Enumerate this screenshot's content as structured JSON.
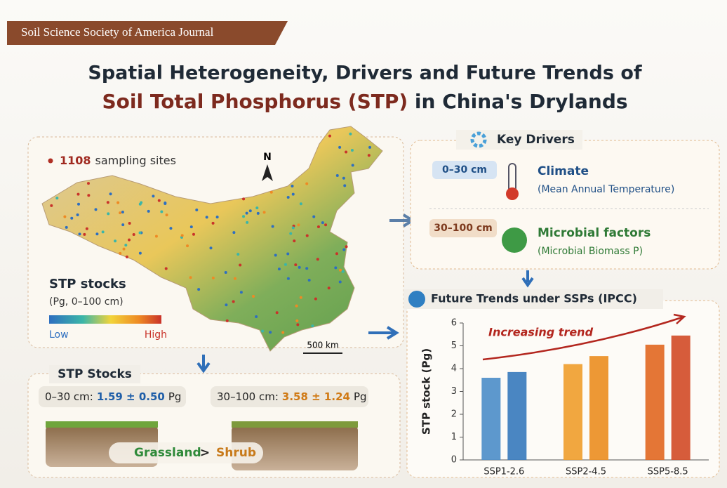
{
  "header": {
    "journal": "Soil Science Society of America Journal",
    "title_line1": "Spatial Heterogeneity, Drivers and Future Trends of",
    "title_line2_highlight": "Soil Total Phosphorus (STP)",
    "title_line2_rest": " in China's Drylands"
  },
  "map": {
    "site_count": "1108",
    "site_label": "sampling sites",
    "north": "N",
    "legend_title": "STP stocks",
    "legend_subtitle": "(Pg, 0–100 cm)",
    "legend_low": "Low",
    "legend_high": "High",
    "scale": "500 km"
  },
  "drivers": {
    "title": "Key Drivers",
    "items": [
      {
        "depth": "0–30 cm",
        "factor": "Climate",
        "detail": "(Mean Annual Temperature)"
      },
      {
        "depth": "30–100 cm",
        "factor": "Microbial factors",
        "detail": "(Microbial Biomass P)"
      }
    ]
  },
  "stocks": {
    "title": "STP Stocks",
    "items": [
      {
        "depth": "0–30 cm:",
        "value": "1.59 ± 0.50",
        "unit": "Pg"
      },
      {
        "depth": "30–100 cm:",
        "value": "3.58 ± 1.24",
        "unit": "Pg"
      }
    ],
    "compare_left": "Grassland",
    "compare_sign": ">",
    "compare_right": "Shrub"
  },
  "future_title": "Future Trends under SSPs (IPCC)",
  "chart_data": {
    "type": "bar",
    "y_label": "STP stock (Pg)",
    "annotation": "Increasing trend",
    "categories": [
      "SSP1-2.6",
      "SSP2-4.5",
      "SSP5-8.5"
    ],
    "series": [
      {
        "colors": [
          "#4f8fc9",
          "#f0a030",
          "#e26a25"
        ],
        "values": [
          3.6,
          4.2,
          5.05
        ]
      },
      {
        "colors": [
          "#3b7cbd",
          "#ec8f24",
          "#d24e2a"
        ],
        "values": [
          3.85,
          4.55,
          5.45
        ]
      }
    ],
    "ylim": [
      0,
      6
    ],
    "yticks": [
      0,
      1,
      2,
      3,
      4,
      5,
      6
    ]
  }
}
